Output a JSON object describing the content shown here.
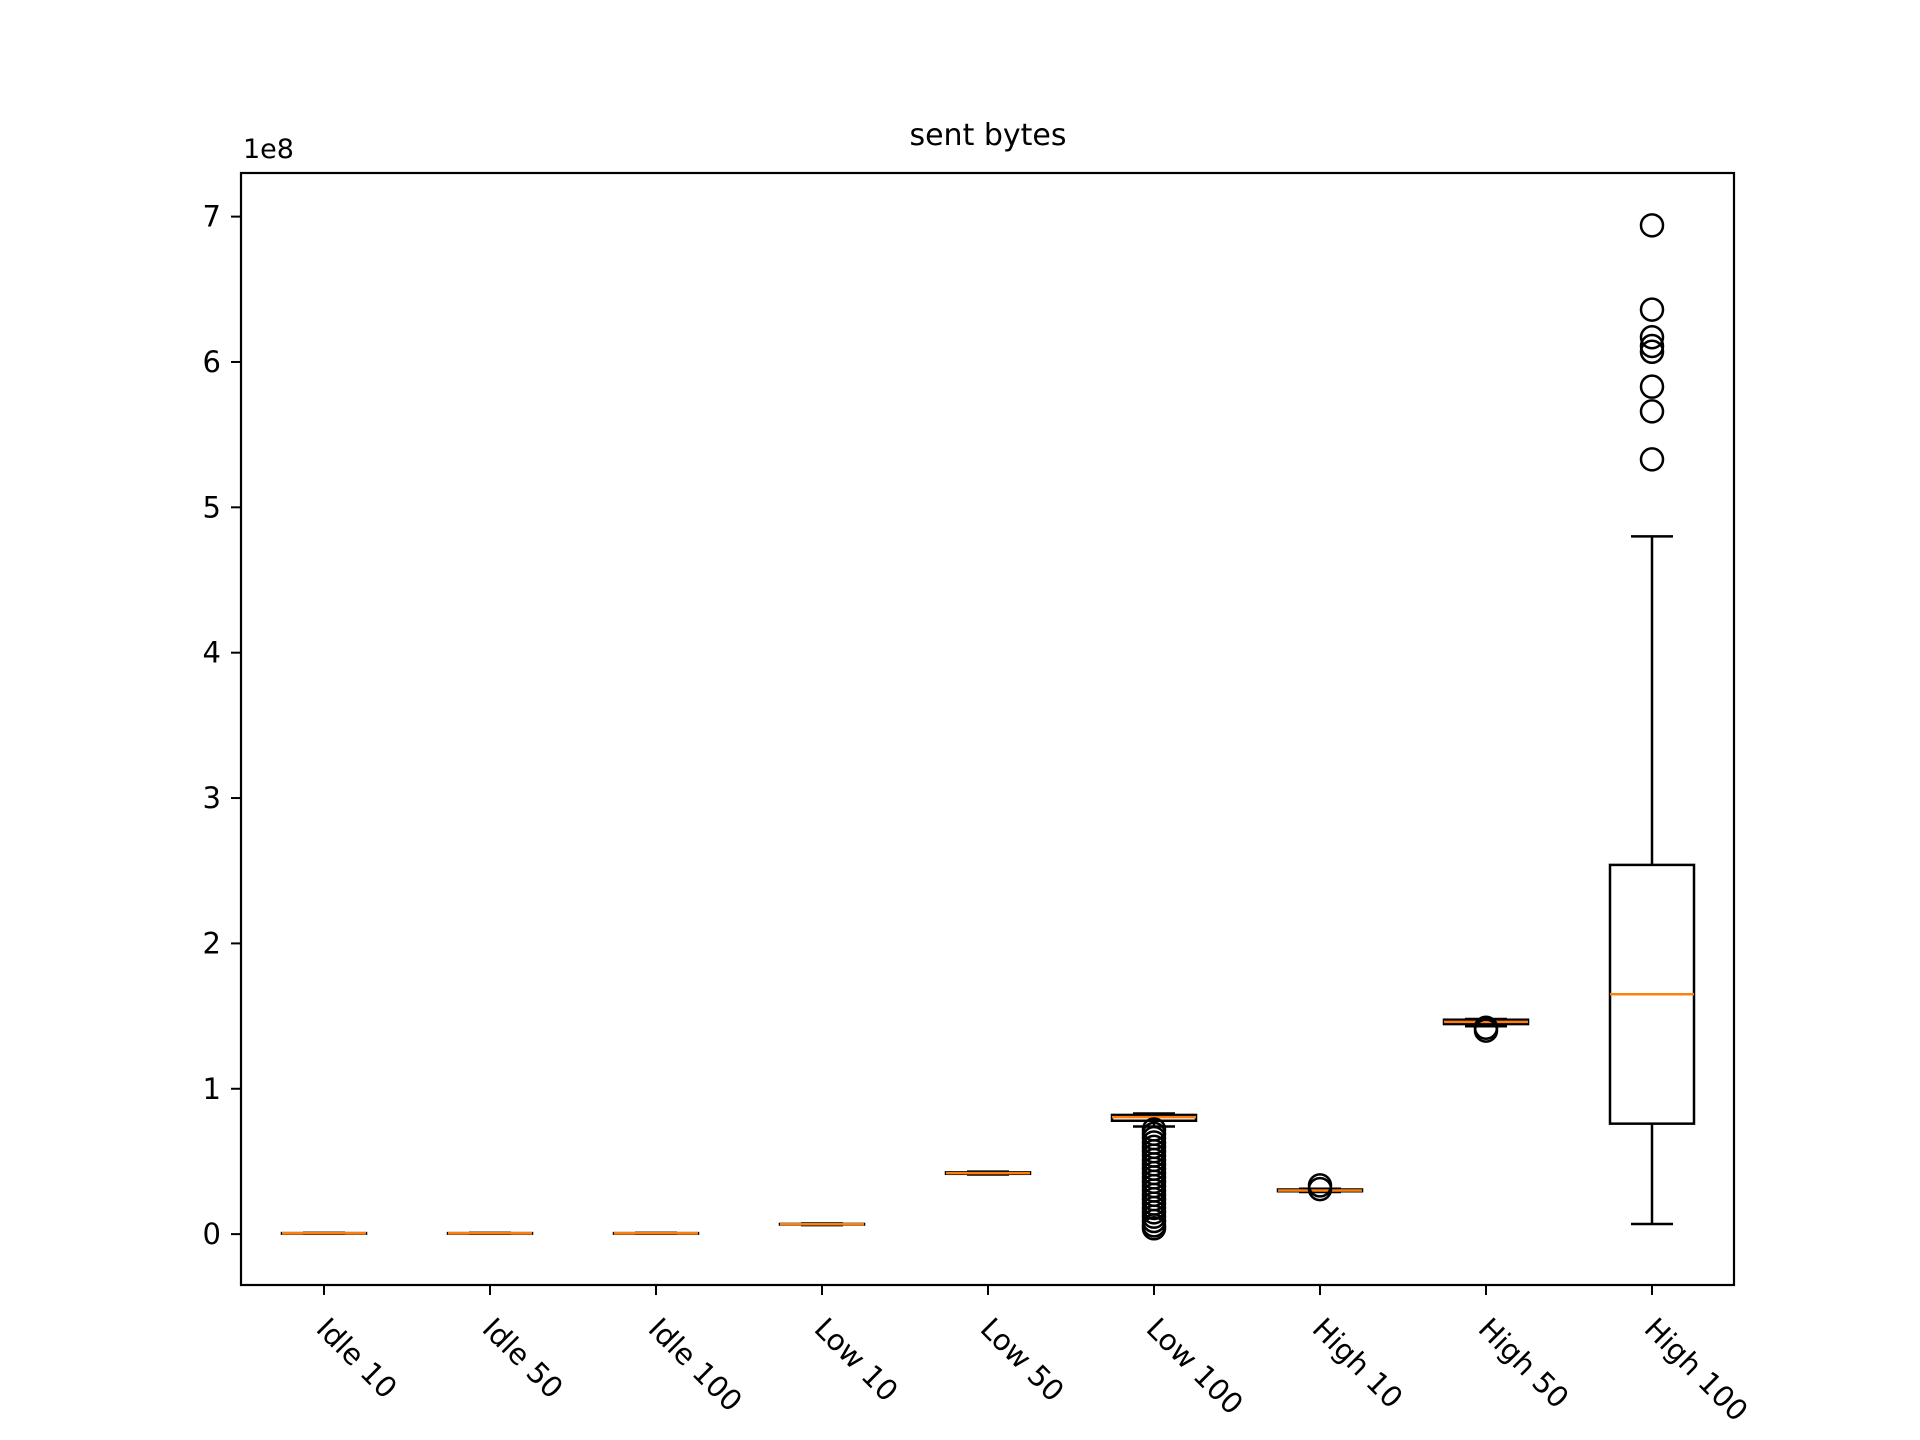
{
  "chart_data": {
    "type": "box",
    "title": "sent bytes",
    "xlabel": "",
    "ylabel": "",
    "y_offset_label": "1e8",
    "y_scale": 100000000,
    "ylim": [
      -35000000,
      730000000
    ],
    "y_ticks": [
      0,
      100000000,
      200000000,
      300000000,
      400000000,
      500000000,
      600000000,
      700000000
    ],
    "y_tick_labels": [
      "0",
      "1",
      "2",
      "3",
      "4",
      "5",
      "6",
      "7"
    ],
    "grid": false,
    "legend": "none",
    "colors": {
      "box": "#000000",
      "median": "#ff7f0e",
      "flier": "#000000"
    },
    "categories": [
      "Idle 10",
      "Idle 50",
      "Idle 100",
      "Low 10",
      "Low 50",
      "Low 100",
      "High 10",
      "High 50",
      "High 100"
    ],
    "boxes": [
      {
        "whislo": 300000,
        "q1": 500000,
        "med": 600000,
        "q3": 700000,
        "whishi": 900000,
        "fliers": []
      },
      {
        "whislo": 300000,
        "q1": 500000,
        "med": 600000,
        "q3": 700000,
        "whishi": 900000,
        "fliers": []
      },
      {
        "whislo": 300000,
        "q1": 500000,
        "med": 600000,
        "q3": 700000,
        "whishi": 900000,
        "fliers": []
      },
      {
        "whislo": 6200000,
        "q1": 6600000,
        "med": 6800000,
        "q3": 7000000,
        "whishi": 7300000,
        "fliers": []
      },
      {
        "whislo": 41000000,
        "q1": 41500000,
        "med": 42000000,
        "q3": 42500000,
        "whishi": 43000000,
        "fliers": []
      },
      {
        "whislo": 74000000,
        "q1": 78000000,
        "med": 80500000,
        "q3": 82000000,
        "whishi": 83000000,
        "fliers": [
          4000000,
          6000000,
          9000000,
          12000000,
          15000000,
          18000000,
          21000000,
          24000000,
          27000000,
          30000000,
          33000000,
          36000000,
          39000000,
          42000000,
          45000000,
          48000000,
          51000000,
          54000000,
          57000000,
          60000000,
          63000000,
          66000000,
          69000000,
          72000000
        ]
      },
      {
        "whislo": 29000000,
        "q1": 29500000,
        "med": 30000000,
        "q3": 30700000,
        "whishi": 31200000,
        "fliers": [
          31000000,
          33500000
        ]
      },
      {
        "whislo": 143000000,
        "q1": 144500000,
        "med": 146000000,
        "q3": 147500000,
        "whishi": 148000000,
        "fliers": [
          140000000,
          142000000
        ]
      },
      {
        "whislo": 7000000,
        "q1": 76000000,
        "med": 165000000,
        "q3": 254000000,
        "whishi": 480000000,
        "fliers": [
          533000000,
          566000000,
          583000000,
          607000000,
          611000000,
          617000000,
          636000000,
          694000000
        ]
      }
    ]
  }
}
